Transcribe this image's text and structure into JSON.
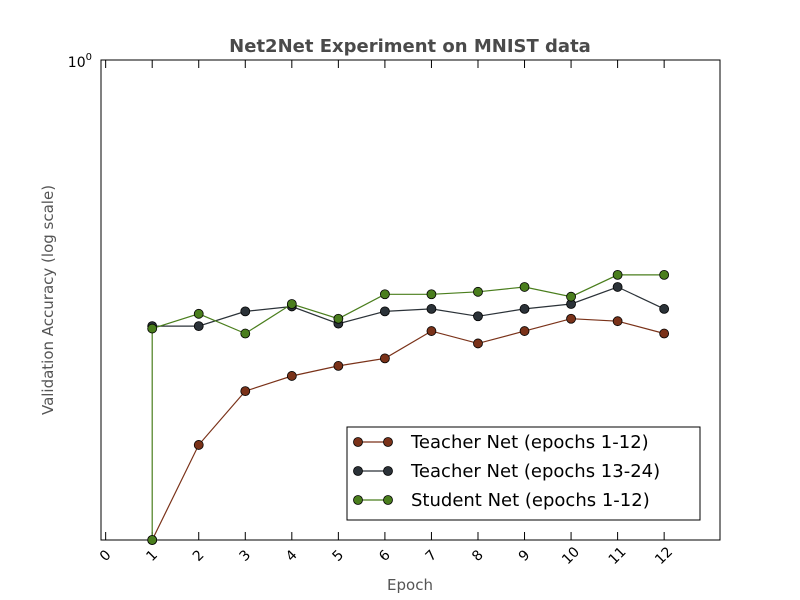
{
  "chart_data": {
    "type": "line",
    "title": "Net2Net Experiment on MNIST data",
    "xlabel": "Epoch",
    "ylabel": "Validation Accuracy (log scale)",
    "y_scale": "log",
    "y_top_label": "10",
    "y_top_exponent": "0",
    "xlim": [
      -0.1,
      13.2
    ],
    "xticks": [
      "0",
      "1",
      "2",
      "3",
      "4",
      "5",
      "6",
      "7",
      "8",
      "9",
      "10",
      "11",
      "12"
    ],
    "grid": false,
    "legend_position": "lower-right",
    "series": [
      {
        "name": "Teacher Net (epochs 1-12)",
        "color": "#7a3219",
        "x": [
          1,
          2,
          3,
          4,
          5,
          6,
          7,
          8,
          9,
          10,
          11,
          12
        ],
        "y": [
          0.903,
          0.939,
          0.96,
          0.966,
          0.97,
          0.973,
          0.984,
          0.979,
          0.984,
          0.989,
          0.988,
          0.983
        ]
      },
      {
        "name": "Teacher Net (epochs 13-24)",
        "color": "#2b3238",
        "x": [
          1,
          2,
          3,
          4,
          5,
          6,
          7,
          8,
          9,
          10,
          11,
          12
        ],
        "y": [
          0.986,
          0.986,
          0.992,
          0.994,
          0.987,
          0.992,
          0.993,
          0.99,
          0.993,
          0.995,
          1.002,
          0.993
        ]
      },
      {
        "name": "Student Net (epochs 1-12)",
        "color": "#4a7e1d",
        "x": [
          1,
          1,
          2,
          3,
          4,
          5,
          6,
          7,
          8,
          9,
          10,
          11,
          12
        ],
        "y": [
          0.903,
          0.985,
          0.991,
          0.983,
          0.995,
          0.989,
          0.999,
          0.999,
          1.0,
          1.002,
          0.998,
          1.007,
          1.007
        ]
      }
    ]
  }
}
